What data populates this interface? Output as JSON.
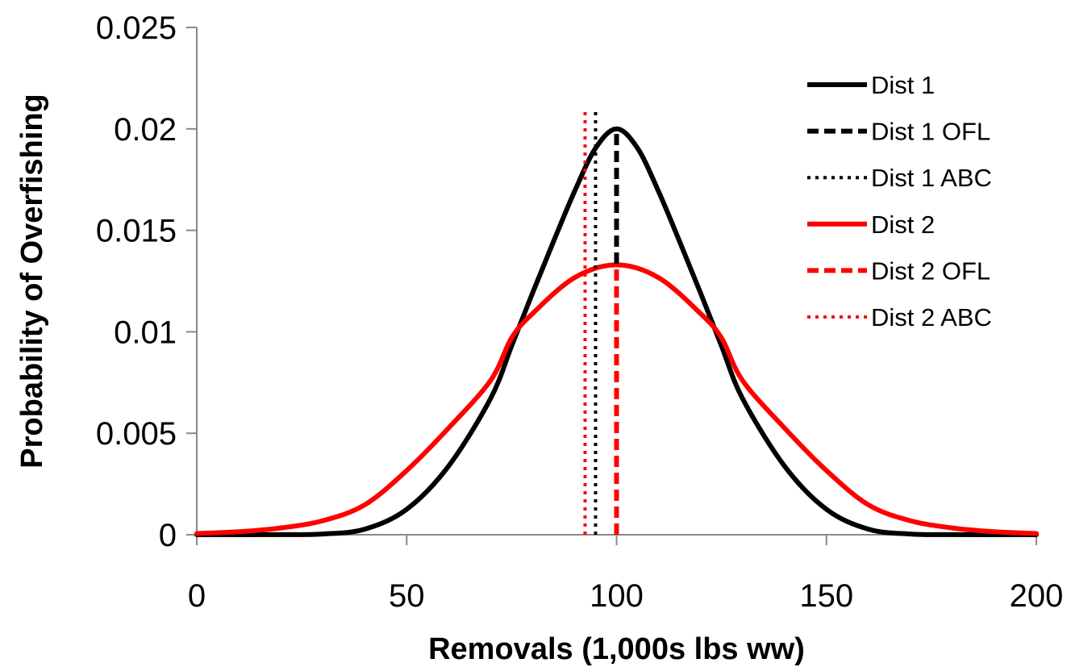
{
  "chart_data": {
    "type": "line",
    "title": "",
    "xlabel": "Removals (1,000s lbs ww)",
    "ylabel": "Probability of Overfishing",
    "xlim": [
      0,
      200
    ],
    "ylim": [
      0,
      0.025
    ],
    "x_ticks": [
      0,
      50,
      100,
      150,
      200
    ],
    "x_tick_labels": [
      "0",
      "50",
      "100",
      "150",
      "200"
    ],
    "y_ticks": [
      0,
      0.005,
      0.01,
      0.015,
      0.02,
      0.025
    ],
    "y_tick_labels": [
      "0",
      "0.005",
      "0.01",
      "0.015",
      "0.02",
      "0.025"
    ],
    "grid": false,
    "legend_position": "right",
    "series": [
      {
        "name": "Dist 1",
        "kind": "curve",
        "style": "solid",
        "color": "#000000",
        "x": [
          0,
          20,
          30,
          40,
          50,
          60,
          70,
          75,
          80,
          85,
          90,
          95,
          100,
          105,
          110,
          115,
          120,
          125,
          130,
          140,
          150,
          160,
          170,
          180,
          200
        ],
        "y": [
          0,
          2.7e-06,
          3.53e-05,
          0.0002736,
          0.001253,
          0.003387,
          0.006717,
          0.0093,
          0.01192,
          0.01446,
          0.01692,
          0.01905,
          0.02,
          0.01905,
          0.01692,
          0.01446,
          0.01192,
          0.0093,
          0.006717,
          0.003387,
          0.001253,
          0.0002736,
          3.53e-05,
          2.7e-06,
          0
        ]
      },
      {
        "name": "Dist 1 OFL",
        "kind": "vline",
        "style": "dashed",
        "color": "#000000",
        "x": [
          100,
          100
        ],
        "y": [
          0,
          0.02
        ]
      },
      {
        "name": "Dist 1 ABC",
        "kind": "vline",
        "style": "dotted",
        "color": "#000000",
        "x": [
          95,
          95
        ],
        "y": [
          0,
          0.0209
        ]
      },
      {
        "name": "Dist 2",
        "kind": "curve",
        "style": "solid",
        "color": "#ff0000",
        "x": [
          0,
          10,
          20,
          30,
          40,
          50,
          60,
          70,
          75,
          80,
          90,
          100,
          110,
          120,
          125,
          130,
          140,
          150,
          160,
          170,
          180,
          190,
          200
        ],
        "y": [
          5.85e-05,
          0.000147,
          0.000334,
          0.00069,
          0.001473,
          0.003163,
          0.005262,
          0.007605,
          0.0097,
          0.0109,
          0.01267,
          0.0133,
          0.01267,
          0.0109,
          0.0097,
          0.007605,
          0.005262,
          0.003163,
          0.001473,
          0.00069,
          0.000334,
          0.000147,
          5.85e-05
        ]
      },
      {
        "name": "Dist 2 OFL",
        "kind": "vline",
        "style": "dashed",
        "color": "#ff0000",
        "x": [
          100,
          100
        ],
        "y": [
          0,
          0.0133
        ]
      },
      {
        "name": "Dist 2 ABC",
        "kind": "vline",
        "style": "dotted",
        "color": "#ff0000",
        "x": [
          92.5,
          92.5
        ],
        "y": [
          0,
          0.0209
        ]
      }
    ]
  }
}
